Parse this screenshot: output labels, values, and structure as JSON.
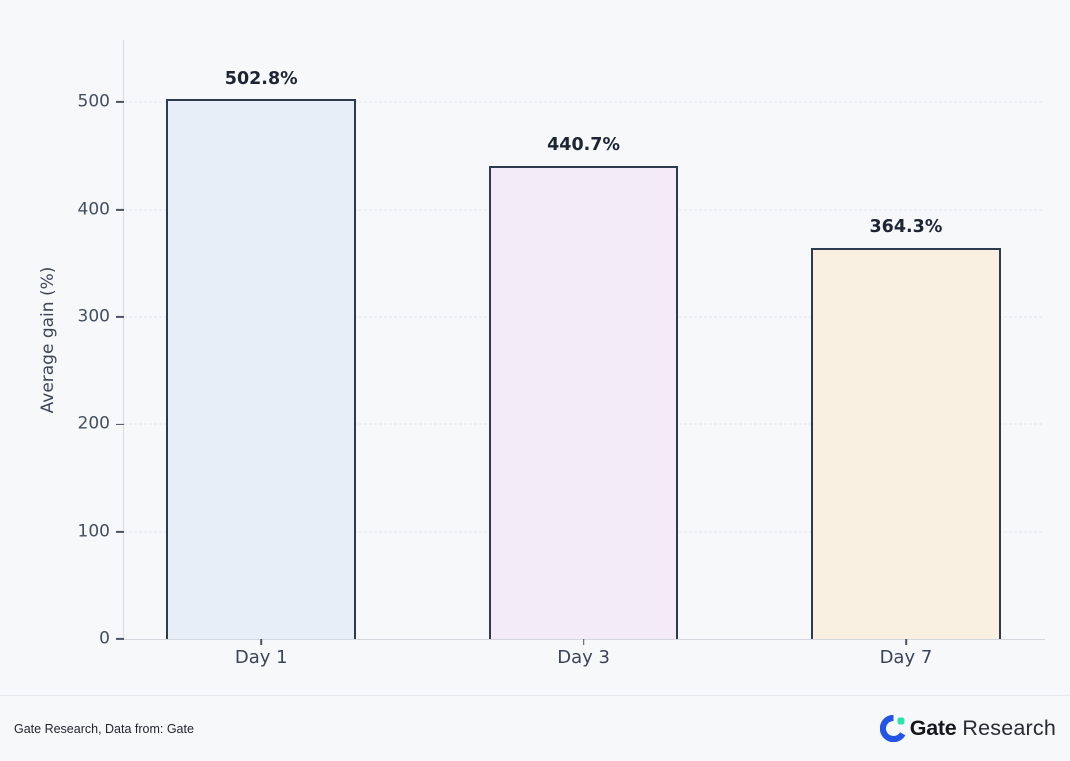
{
  "chart_data": {
    "type": "bar",
    "categories": [
      "Day 1",
      "Day 3",
      "Day 7"
    ],
    "values": [
      502.8,
      440.7,
      364.3
    ],
    "value_labels": [
      "502.8%",
      "440.7%",
      "364.3%"
    ],
    "bar_colors": [
      "#e8eef8",
      "#f3ecf8",
      "#f9f0e1"
    ],
    "bar_border_color": "#2e3a4e",
    "title": "",
    "xlabel": "",
    "ylabel": "Average gain (%)",
    "ylim": [
      0,
      558
    ],
    "yticks": [
      0,
      100,
      200,
      300,
      400,
      500
    ],
    "grid": "horizontal dashed",
    "legend": "none",
    "background": "#f7f8fa"
  },
  "footer": {
    "source_text": "Gate Research, Data from: Gate",
    "logo": {
      "brand": "Gate",
      "suffix": "Research",
      "icon": "gate-logo-icon",
      "blue": "#2354e6",
      "teal": "#2fe2ac"
    }
  }
}
